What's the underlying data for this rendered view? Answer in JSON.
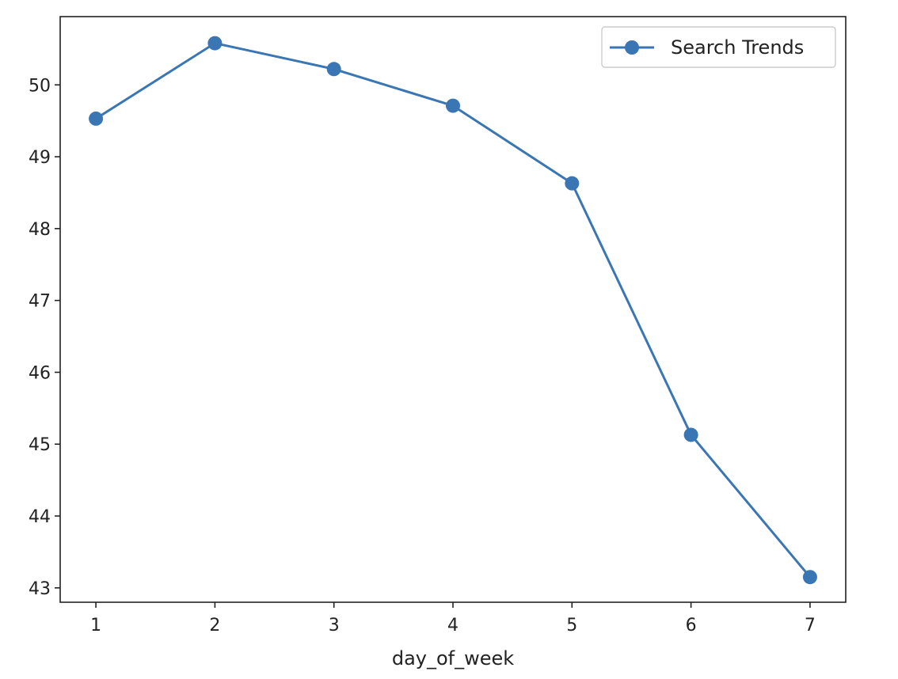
{
  "chart_data": {
    "type": "line",
    "title": "",
    "xlabel": "day_of_week",
    "ylabel": "",
    "x": [
      1,
      2,
      3,
      4,
      5,
      6,
      7
    ],
    "series": [
      {
        "name": "Search Trends",
        "values": [
          49.53,
          50.58,
          50.22,
          49.71,
          48.63,
          45.13,
          43.15
        ],
        "color": "#3a76b3",
        "marker": "circle"
      }
    ],
    "xlim": [
      0.7,
      7.3
    ],
    "ylim": [
      42.8,
      50.95
    ],
    "xticks": [
      1,
      2,
      3,
      4,
      5,
      6,
      7
    ],
    "yticks": [
      43,
      44,
      45,
      46,
      47,
      48,
      49,
      50
    ],
    "grid": false,
    "legend_position": "top-right"
  }
}
